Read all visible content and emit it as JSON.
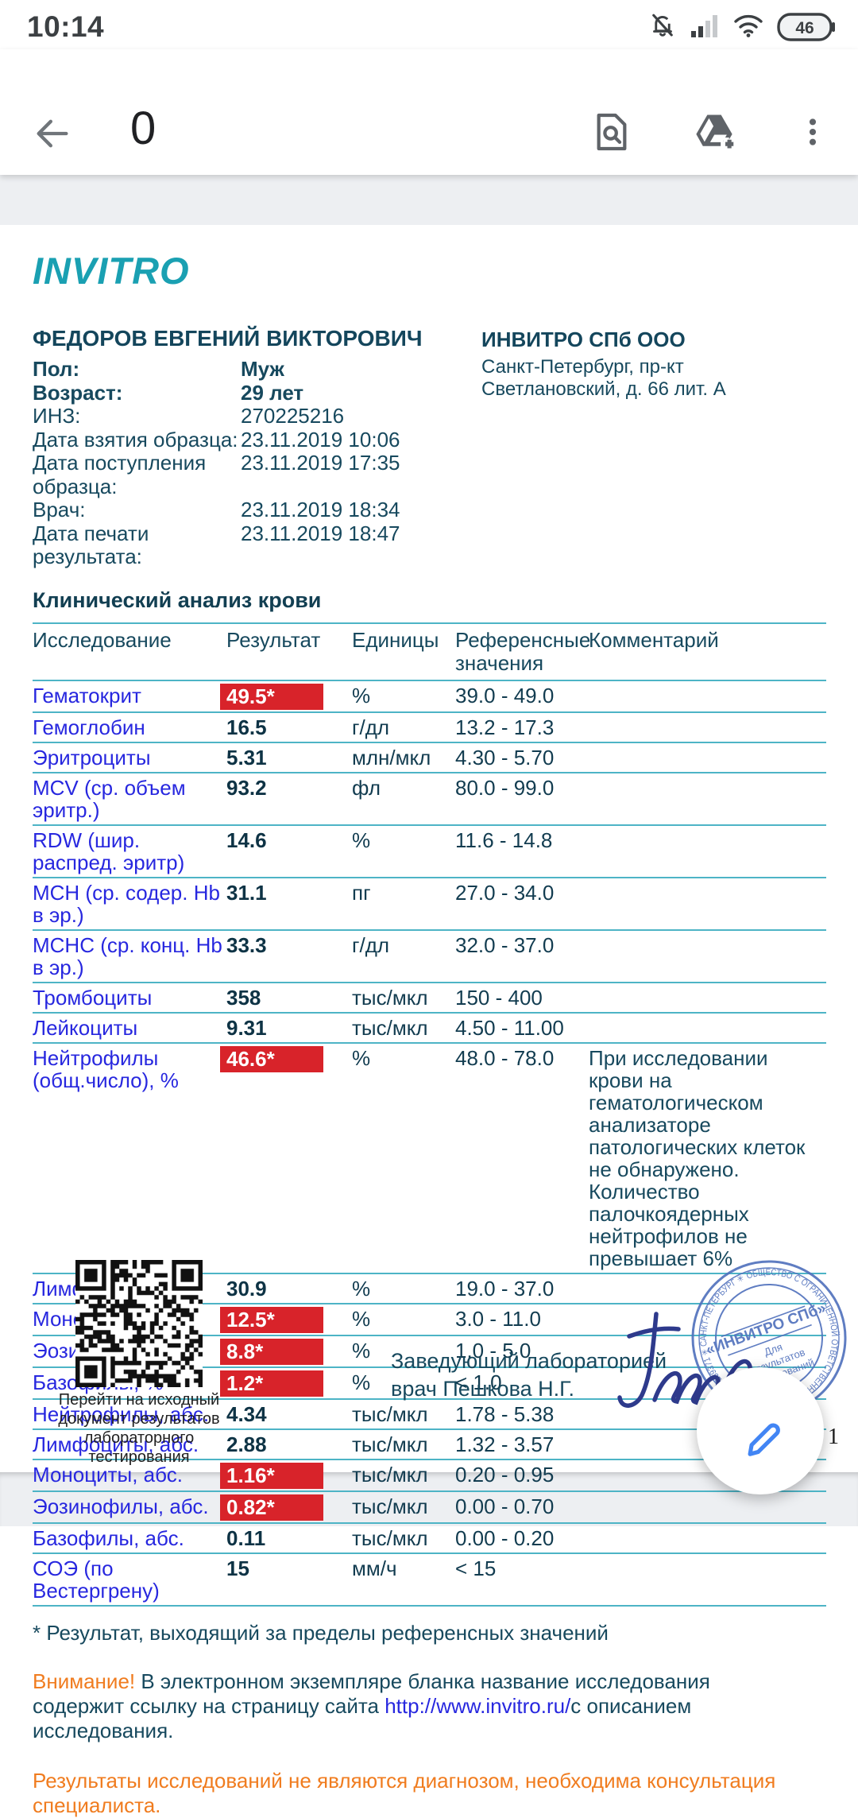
{
  "status_bar": {
    "time": "10:14",
    "battery_percent": "46"
  },
  "toolbar": {
    "title": "0"
  },
  "icons": {
    "status": [
      "notifications-off-icon",
      "signal-strength-icon",
      "wifi-icon",
      "battery-icon"
    ],
    "toolbar": [
      "back-arrow-icon",
      "find-in-page-icon",
      "add-to-drive-icon",
      "overflow-menu-icon"
    ],
    "fab": "edit-pencil-icon"
  },
  "colors": {
    "brand_teal": "#1aa0b2",
    "flag_red": "#d8232a",
    "rule_teal": "#4db4c6",
    "warning_orange": "#f07c1f",
    "link_blue": "#2727df",
    "stamp_blue": "#5272bd",
    "fab_blue": "#4285f4"
  },
  "document": {
    "logo": "INVITRO",
    "patient": {
      "name": "ФЕДОРОВ ЕВГЕНИЙ ВИКТОРОВИЧ",
      "rows": [
        {
          "label": "Пол:",
          "value": "Муж",
          "bold": true
        },
        {
          "label": "Возраст:",
          "value": "29 лет",
          "bold": true
        },
        {
          "label": "ИНЗ:",
          "value": "270225216",
          "bold": false
        },
        {
          "label": "Дата взятия образца:",
          "value": "23.11.2019 10:06",
          "bold": false
        },
        {
          "label": "Дата поступления образца:",
          "value": "23.11.2019 17:35",
          "bold": false
        },
        {
          "label": "Врач:",
          "value": "23.11.2019 18:34",
          "bold": false
        },
        {
          "label": "Дата печати результата:",
          "value": "23.11.2019 18:47",
          "bold": false
        }
      ]
    },
    "clinic": {
      "name": "ИНВИТРО СПб ООО",
      "address": "Санкт-Петербург, пр-кт Светлановский, д. 66 лит. А"
    },
    "section_title": "Клинический анализ крови",
    "table": {
      "headers": [
        "Исследование",
        "Результат",
        "Единицы",
        "Референсные значения",
        "Комментарий"
      ],
      "rows": [
        {
          "name": "Гематокрит",
          "result": "49.5*",
          "flag": true,
          "units": "%",
          "ref": "39.0 - 49.0",
          "comment": ""
        },
        {
          "name": "Гемоглобин",
          "result": "16.5",
          "flag": false,
          "units": "г/дл",
          "ref": "13.2 - 17.3",
          "comment": ""
        },
        {
          "name": "Эритроциты",
          "result": "5.31",
          "flag": false,
          "units": "млн/мкл",
          "ref": "4.30 - 5.70",
          "comment": ""
        },
        {
          "name": "MCV (ср. объем эритр.)",
          "result": "93.2",
          "flag": false,
          "units": "фл",
          "ref": "80.0 - 99.0",
          "comment": ""
        },
        {
          "name": "RDW (шир. распред. эритр)",
          "result": "14.6",
          "flag": false,
          "units": "%",
          "ref": "11.6 - 14.8",
          "comment": ""
        },
        {
          "name": "MCH (ср. содер. Hb в эр.)",
          "result": "31.1",
          "flag": false,
          "units": "пг",
          "ref": "27.0 - 34.0",
          "comment": ""
        },
        {
          "name": "MCHC (ср. конц. Hb в эр.)",
          "result": "33.3",
          "flag": false,
          "units": "г/дл",
          "ref": "32.0 - 37.0",
          "comment": ""
        },
        {
          "name": "Тромбоциты",
          "result": "358",
          "flag": false,
          "units": "тыс/мкл",
          "ref": "150 - 400",
          "comment": ""
        },
        {
          "name": "Лейкоциты",
          "result": "9.31",
          "flag": false,
          "units": "тыс/мкл",
          "ref": "4.50 - 11.00",
          "comment": ""
        },
        {
          "name": "Нейтрофилы (общ.число), %",
          "result": "46.6*",
          "flag": true,
          "units": "%",
          "ref": "48.0 - 78.0",
          "comment": "При исследовании крови на гематологическом анализаторе патологических клеток не обнаружено. Количество палочкоядерных нейтрофилов не превышает 6%"
        },
        {
          "name": "Лимфоциты, %",
          "result": "30.9",
          "flag": false,
          "units": "%",
          "ref": "19.0 - 37.0",
          "comment": ""
        },
        {
          "name": "Моноциты, %",
          "result": "12.5*",
          "flag": true,
          "units": "%",
          "ref": "3.0 - 11.0",
          "comment": ""
        },
        {
          "name": "Эозинофилы, %",
          "result": "8.8*",
          "flag": true,
          "units": "%",
          "ref": "1.0 - 5.0",
          "comment": ""
        },
        {
          "name": "Базофилы, %",
          "result": "1.2*",
          "flag": true,
          "units": "%",
          "ref": "< 1.0",
          "comment": ""
        },
        {
          "name": "Нейтрофилы, абс.",
          "result": "4.34",
          "flag": false,
          "units": "тыс/мкл",
          "ref": "1.78 - 5.38",
          "comment": ""
        },
        {
          "name": "Лимфоциты, абс.",
          "result": "2.88",
          "flag": false,
          "units": "тыс/мкл",
          "ref": "1.32 - 3.57",
          "comment": ""
        },
        {
          "name": "Моноциты, абс.",
          "result": "1.16*",
          "flag": true,
          "units": "тыс/мкл",
          "ref": "0.20 - 0.95",
          "comment": ""
        },
        {
          "name": "Эозинофилы, абс.",
          "result": "0.82*",
          "flag": true,
          "units": "тыс/мкл",
          "ref": "0.00 - 0.70",
          "comment": ""
        },
        {
          "name": "Базофилы, абс.",
          "result": "0.11",
          "flag": false,
          "units": "тыс/мкл",
          "ref": "0.00 - 0.20",
          "comment": ""
        },
        {
          "name": "СОЭ (по Вестергрену)",
          "result": "15",
          "flag": false,
          "units": "мм/ч",
          "ref": "< 15",
          "comment": ""
        }
      ]
    },
    "footnote": "* Результат, выходящий за пределы референсных значений",
    "notice": {
      "attention": "Внимание!",
      "before_link": " В электронном экземпляре бланка название исследования содержит ссылку на страницу сайта ",
      "link": "http://www.invitro.ru/",
      "after_link": "с описанием исследования."
    },
    "disclaimer": "Результаты исследований не являются диагнозом, необходима консультация специалиста.",
    "qr": {
      "caption_lines": [
        "Перейти на исходный",
        "документ результатов",
        "лабораторного тестирования"
      ]
    },
    "signatory": {
      "line1": "Заведующий лабораторией",
      "line2": "врач Пешкова Н.Г."
    },
    "stamp": {
      "ring_text": "ОБЩЕСТВО С ОГРАНИЧЕННОЙ ОТВЕТСТВЕННОСТЬЮ ✳ ОГРН 1057813259371 ✳ САНКТ-ПЕТЕРБУРГ ✳",
      "center_line1": "«ИНВИТРО СПб»",
      "center_line2": "Для",
      "center_line3": "результатов",
      "center_line4": "исследований"
    },
    "page_indicator": "з 1"
  }
}
